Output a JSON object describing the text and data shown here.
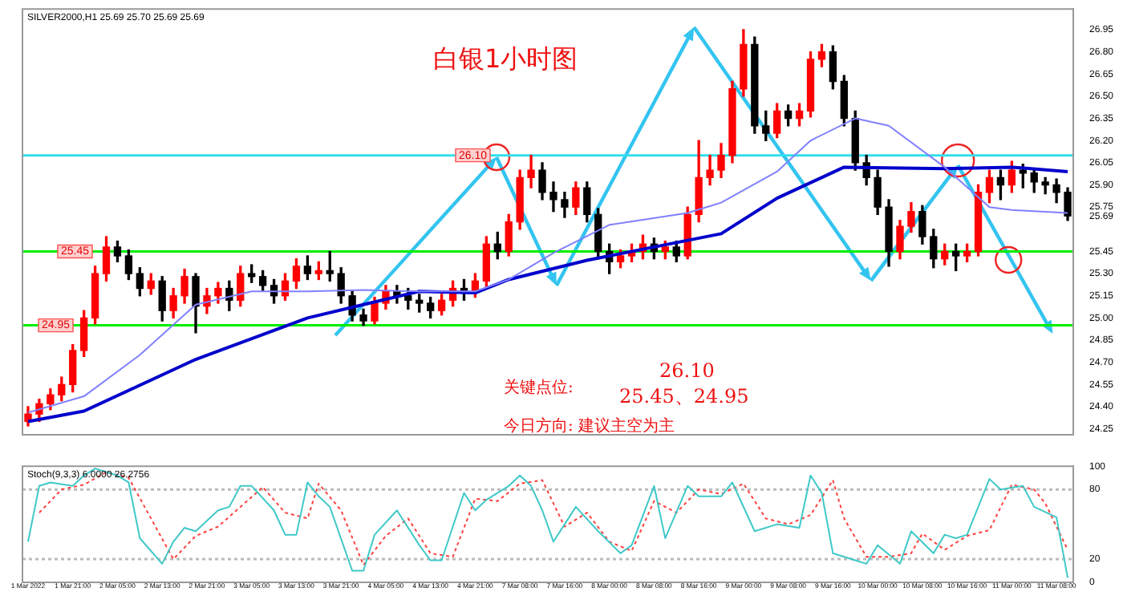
{
  "chart_data": [
    {
      "type": "candlestick",
      "title": "SILVER2000,H1 25.69 25.70 25.69 25.69",
      "subtitle": "白银1小时图",
      "annotations": [
        "关键点位:",
        "26.10",
        "25.45、24.95",
        "今日方向: 建议主空为主"
      ],
      "categories": [
        null,
        null,
        null,
        null,
        null,
        null,
        null,
        null,
        null,
        null,
        null,
        null,
        null,
        null,
        null,
        null,
        null,
        null,
        null,
        null,
        null,
        null,
        null,
        null,
        null,
        null,
        null,
        null,
        null,
        null,
        null,
        null,
        null,
        null,
        null,
        null,
        null,
        null,
        null,
        null,
        null,
        null,
        null,
        null,
        null,
        null,
        null,
        null,
        null,
        null,
        null,
        null,
        null,
        null,
        null,
        null,
        null,
        null,
        null,
        null,
        null,
        null,
        null,
        null,
        null,
        null,
        null,
        null,
        null,
        null,
        null,
        null,
        null,
        null,
        null,
        null,
        null,
        null,
        null,
        null,
        null,
        null,
        null,
        null,
        null,
        null,
        null,
        null,
        null,
        null,
        null,
        null,
        null,
        null
      ],
      "ohlc": [
        [
          24.3,
          24.4,
          24.27,
          24.35
        ],
        [
          24.35,
          24.45,
          24.3,
          24.42
        ],
        [
          24.42,
          24.52,
          24.38,
          24.48
        ],
        [
          24.48,
          24.6,
          24.44,
          24.55
        ],
        [
          24.55,
          24.82,
          24.5,
          24.78
        ],
        [
          24.78,
          25.05,
          24.74,
          25.0
        ],
        [
          25.0,
          25.35,
          24.96,
          25.3
        ],
        [
          25.3,
          25.55,
          25.25,
          25.48
        ],
        [
          25.48,
          25.52,
          25.38,
          25.42
        ],
        [
          25.42,
          25.46,
          25.26,
          25.3
        ],
        [
          25.3,
          25.34,
          25.15,
          25.2
        ],
        [
          25.2,
          25.3,
          25.16,
          25.25
        ],
        [
          25.25,
          25.28,
          24.98,
          25.05
        ],
        [
          25.05,
          25.2,
          25.0,
          25.15
        ],
        [
          25.15,
          25.33,
          25.1,
          25.28
        ],
        [
          25.28,
          25.3,
          24.9,
          25.08
        ],
        [
          25.08,
          25.2,
          25.03,
          25.15
        ],
        [
          25.15,
          25.24,
          25.1,
          25.2
        ],
        [
          25.2,
          25.25,
          25.05,
          25.12
        ],
        [
          25.12,
          25.35,
          25.08,
          25.3
        ],
        [
          25.3,
          25.36,
          25.24,
          25.28
        ],
        [
          25.28,
          25.32,
          25.18,
          25.22
        ],
        [
          25.22,
          25.26,
          25.1,
          25.15
        ],
        [
          25.15,
          25.3,
          25.12,
          25.25
        ],
        [
          25.25,
          25.4,
          25.2,
          25.35
        ],
        [
          25.35,
          25.42,
          25.26,
          25.3
        ],
        [
          25.3,
          25.38,
          25.26,
          25.32
        ],
        [
          25.32,
          25.45,
          25.25,
          25.3
        ],
        [
          25.3,
          25.34,
          25.1,
          25.15
        ],
        [
          25.15,
          25.18,
          24.98,
          25.02
        ],
        [
          25.02,
          25.06,
          24.95,
          24.98
        ],
        [
          24.98,
          25.14,
          24.96,
          25.1
        ],
        [
          25.1,
          25.22,
          25.06,
          25.18
        ],
        [
          25.18,
          25.22,
          25.1,
          25.15
        ],
        [
          25.15,
          25.2,
          25.06,
          25.12
        ],
        [
          25.12,
          25.16,
          25.04,
          25.1
        ],
        [
          25.1,
          25.14,
          25.0,
          25.05
        ],
        [
          25.05,
          25.16,
          25.02,
          25.12
        ],
        [
          25.12,
          25.25,
          25.08,
          25.2
        ],
        [
          25.2,
          25.26,
          25.12,
          25.18
        ],
        [
          25.18,
          25.3,
          25.14,
          25.25
        ],
        [
          25.25,
          25.55,
          25.2,
          25.5
        ],
        [
          25.5,
          25.58,
          25.4,
          25.45
        ],
        [
          25.45,
          25.7,
          25.42,
          25.65
        ],
        [
          25.65,
          26.0,
          25.6,
          25.95
        ],
        [
          25.95,
          26.1,
          25.88,
          26.0
        ],
        [
          26.0,
          26.05,
          25.8,
          25.85
        ],
        [
          25.85,
          25.92,
          25.72,
          25.8
        ],
        [
          25.8,
          25.85,
          25.68,
          25.75
        ],
        [
          25.75,
          25.92,
          25.7,
          25.88
        ],
        [
          25.88,
          25.92,
          25.65,
          25.7
        ],
        [
          25.7,
          25.74,
          25.4,
          25.45
        ],
        [
          25.45,
          25.5,
          25.3,
          25.38
        ],
        [
          25.38,
          25.46,
          25.34,
          25.42
        ],
        [
          25.42,
          25.5,
          25.38,
          25.45
        ],
        [
          25.45,
          25.56,
          25.4,
          25.5
        ],
        [
          25.5,
          25.54,
          25.4,
          25.45
        ],
        [
          25.45,
          25.52,
          25.4,
          25.48
        ],
        [
          25.48,
          25.52,
          25.38,
          25.42
        ],
        [
          25.42,
          25.75,
          25.4,
          25.7
        ],
        [
          25.7,
          26.2,
          25.65,
          25.95
        ],
        [
          25.95,
          26.1,
          25.9,
          26.0
        ],
        [
          26.0,
          26.18,
          25.95,
          26.1
        ],
        [
          26.1,
          26.6,
          26.05,
          26.55
        ],
        [
          26.55,
          26.95,
          26.5,
          26.85
        ],
        [
          26.85,
          26.9,
          26.25,
          26.3
        ],
        [
          26.3,
          26.4,
          26.2,
          26.25
        ],
        [
          26.25,
          26.45,
          26.22,
          26.4
        ],
        [
          26.4,
          26.44,
          26.3,
          26.35
        ],
        [
          26.35,
          26.45,
          26.3,
          26.4
        ],
        [
          26.4,
          26.8,
          26.36,
          26.75
        ],
        [
          26.75,
          26.85,
          26.7,
          26.8
        ],
        [
          26.8,
          26.84,
          26.55,
          26.6
        ],
        [
          26.6,
          26.64,
          26.3,
          26.35
        ],
        [
          26.35,
          26.4,
          26.0,
          26.05
        ],
        [
          26.05,
          26.1,
          25.9,
          25.95
        ],
        [
          25.95,
          26.0,
          25.7,
          25.75
        ],
        [
          25.75,
          25.8,
          25.35,
          25.45
        ],
        [
          25.45,
          25.66,
          25.4,
          25.62
        ],
        [
          25.62,
          25.78,
          25.58,
          25.72
        ],
        [
          25.72,
          25.76,
          25.5,
          25.55
        ],
        [
          25.55,
          25.6,
          25.34,
          25.4
        ],
        [
          25.4,
          25.5,
          25.36,
          25.45
        ],
        [
          25.45,
          25.5,
          25.32,
          25.42
        ],
        [
          25.42,
          25.5,
          25.38,
          25.45
        ],
        [
          25.45,
          25.9,
          25.42,
          25.85
        ],
        [
          25.85,
          26.0,
          25.78,
          25.95
        ],
        [
          25.95,
          26.0,
          25.8,
          25.9
        ],
        [
          25.9,
          26.06,
          25.85,
          26.0
        ],
        [
          26.0,
          26.04,
          25.88,
          25.98
        ],
        [
          25.98,
          26.0,
          25.85,
          25.92
        ],
        [
          25.92,
          25.95,
          25.84,
          25.9
        ],
        [
          25.9,
          25.94,
          25.78,
          25.85
        ],
        [
          25.85,
          25.88,
          25.66,
          25.69
        ]
      ],
      "series": [
        {
          "type": "line",
          "color": "#8080ff",
          "values": [
            24.36,
            null,
            null,
            null,
            null,
            24.47,
            null,
            null,
            null,
            null,
            24.75,
            null,
            null,
            null,
            null,
            25.09,
            null,
            null,
            null,
            null,
            25.18,
            null,
            null,
            null,
            null,
            25.18,
            null,
            null,
            null,
            null,
            25.19,
            null,
            null,
            null,
            null,
            25.18,
            null,
            null,
            null,
            null,
            25.18,
            null,
            null,
            25.26,
            null,
            null,
            null,
            25.44,
            null,
            null,
            null,
            null,
            25.63,
            null,
            null,
            null,
            null,
            null,
            null,
            25.71,
            null,
            null,
            25.78,
            null,
            null,
            null,
            null,
            25.99,
            null,
            null,
            26.2,
            null,
            null,
            null,
            26.35,
            null,
            null,
            26.3,
            null,
            null,
            null,
            null,
            26.02,
            null,
            null,
            null,
            25.75,
            null,
            25.73,
            null,
            null,
            null,
            null,
            25.71
          ]
        },
        {
          "type": "line",
          "color": "#0000cc",
          "values": [
            24.3,
            null,
            null,
            null,
            null,
            24.37,
            null,
            null,
            null,
            null,
            null,
            null,
            null,
            null,
            null,
            24.72,
            null,
            null,
            null,
            null,
            null,
            null,
            null,
            null,
            null,
            25.0,
            null,
            null,
            null,
            null,
            25.09,
            null,
            null,
            null,
            null,
            25.18,
            null,
            null,
            null,
            null,
            25.17,
            null,
            null,
            25.26,
            null,
            null,
            null,
            null,
            null,
            null,
            25.39,
            null,
            25.42,
            null,
            null,
            null,
            null,
            null,
            null,
            null,
            null,
            null,
            25.57,
            null,
            null,
            null,
            null,
            25.81,
            null,
            null,
            null,
            null,
            null,
            26.02,
            null,
            null,
            null,
            null,
            null,
            null,
            null,
            null,
            26.01,
            null,
            null,
            null,
            null,
            null,
            26.02,
            null,
            null,
            null,
            null,
            25.99
          ]
        }
      ],
      "ylim": [
        24.21,
        27.09
      ],
      "yticks": [
        26.95,
        {
          "value": 26.8,
          "label": "26.80"
        },
        26.65,
        {
          "value": 26.5,
          "label": "26.50"
        },
        26.35,
        {
          "value": 26.2,
          "label": "26.20"
        },
        26.05,
        {
          "value": 25.9,
          "label": "25.90"
        },
        25.75,
        {
          "value": 25.69,
          "label": "25.69"
        },
        25.45,
        {
          "value": 25.3,
          "label": "25.30"
        },
        25.15,
        {
          "value": 25,
          "label": "25.00"
        },
        24.85,
        {
          "value": 24.7,
          "label": "24.70"
        },
        24.55,
        {
          "value": 24.4,
          "label": "24.40"
        },
        24.25
      ],
      "ref_lines": [
        {
          "axis": "y",
          "value": 26.1,
          "label": "26.10",
          "color": "#33ddee"
        },
        {
          "axis": "y",
          "value": 25.45,
          "label": "25.45",
          "color": "#00ee00"
        },
        {
          "axis": "y",
          "value": 24.95,
          "label": "24.95",
          "color": "#00ee00"
        }
      ],
      "tick_labels": "y"
    },
    {
      "type": "line",
      "title": "Stoch(9,3,3) 6.0000 26.2756",
      "categories": [
        "1 Mar 2022",
        null,
        null,
        null,
        "1 Mar 21:00",
        null,
        null,
        null,
        "2 Mar 05:00",
        null,
        null,
        null,
        "2 Mar 13:00",
        null,
        null,
        null,
        "2 Mar 21:00",
        null,
        null,
        null,
        "3 Mar 05:00",
        null,
        null,
        null,
        "3 Mar 13:00",
        null,
        null,
        null,
        "3 Mar 21:00",
        null,
        null,
        null,
        "4 Mar 05:00",
        null,
        null,
        null,
        "4 Mar 13:00",
        null,
        null,
        null,
        "4 Mar 21:00",
        null,
        null,
        null,
        "7 Mar 08:00",
        null,
        null,
        null,
        "7 Mar 16:00",
        null,
        null,
        null,
        "8 Mar 00:00",
        null,
        null,
        null,
        "8 Mar 08:00",
        null,
        null,
        null,
        "8 Mar 16:00",
        null,
        null,
        null,
        "9 Mar 00:00",
        null,
        null,
        null,
        "9 Mar 08:00",
        null,
        null,
        null,
        "9 Mar 16:00",
        null,
        null,
        null,
        "10 Mar 00:00",
        null,
        null,
        null,
        "10 Mar 08:00",
        null,
        null,
        null,
        "10 Mar 16:00",
        null,
        null,
        null,
        "11 Mar 00:00",
        null,
        null,
        null,
        "11 Mar 08:00",
        null
      ],
      "series": [
        {
          "color": "#40c8c8",
          "line_style": "solid",
          "values": [
            35,
            83,
            86,
            null,
            83,
            92,
            98,
            null,
            92,
            86,
            38,
            null,
            16,
            35,
            47,
            44,
            null,
            62,
            65,
            83,
            83,
            null,
            62,
            41,
            41,
            86,
            74,
            65,
            null,
            10,
            10,
            41,
            null,
            62,
            null,
            32,
            19,
            19,
            null,
            77,
            62,
            71,
            null,
            83,
            92,
            83,
            62,
            35,
            null,
            65,
            null,
            44,
            null,
            25,
            32,
            null,
            83,
            38,
            null,
            83,
            74,
            null,
            74,
            86,
            null,
            44,
            null,
            50,
            null,
            47,
            92,
            77,
            25,
            null,
            19,
            16,
            32,
            null,
            16,
            44,
            null,
            25,
            41,
            38,
            41,
            null,
            89,
            80,
            null,
            83,
            65,
            null,
            56,
            4
          ]
        },
        {
          "color": "#ff4040",
          "line_style": "dotted",
          "values": [
            null,
            60,
            null,
            80,
            null,
            84,
            null,
            95,
            null,
            90,
            null,
            55,
            null,
            20,
            null,
            40,
            null,
            48,
            null,
            65,
            null,
            82,
            null,
            60,
            null,
            55,
            85,
            null,
            62,
            null,
            15,
            null,
            40,
            null,
            55,
            null,
            25,
            null,
            22,
            null,
            72,
            null,
            70,
            null,
            85,
            null,
            88,
            null,
            48,
            null,
            60,
            null,
            35,
            null,
            27,
            null,
            70,
            null,
            60,
            null,
            80,
            null,
            76,
            null,
            85,
            null,
            55,
            null,
            50,
            null,
            58,
            null,
            88,
            55,
            null,
            22,
            null,
            22,
            null,
            25,
            42,
            null,
            28,
            null,
            40,
            null,
            45,
            null,
            84,
            null,
            80,
            68,
            null,
            28
          ]
        }
      ],
      "ylim": [
        0,
        100
      ],
      "yticks": [
        0,
        20,
        80,
        100
      ],
      "ref_lines": [
        {
          "axis": "y",
          "value": 20,
          "color": "#bbbbbb",
          "line_style": "dotted"
        },
        {
          "axis": "y",
          "value": 80,
          "color": "#bbbbbb",
          "line_style": "dotted"
        }
      ]
    }
  ]
}
